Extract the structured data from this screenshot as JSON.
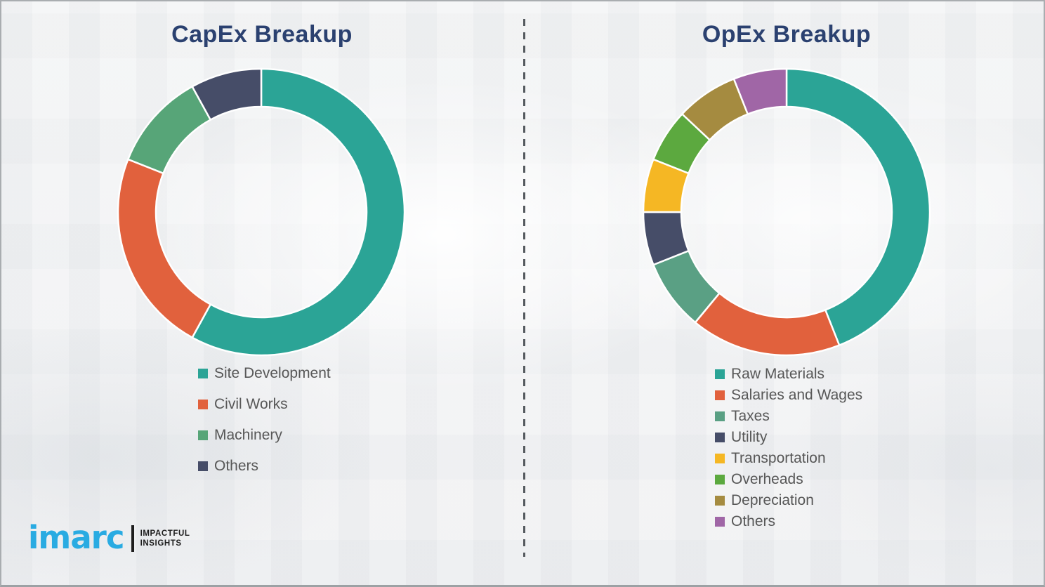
{
  "style": {
    "title_color": "#2B4170",
    "legend_text_color": "#575757",
    "segment_gap_color": "#ffffff"
  },
  "chart_data": [
    {
      "type": "donut",
      "title": "CapEx Breakup",
      "categories": [
        "Site Development",
        "Civil Works",
        "Machinery",
        "Others"
      ],
      "values": [
        58,
        23,
        11,
        8
      ],
      "colors": [
        "#2BA496",
        "#E1613D",
        "#57A578",
        "#464D68"
      ],
      "start_angle_deg": 0,
      "direction": "clockwise",
      "legend_position": "below",
      "data_labels": false
    },
    {
      "type": "donut",
      "title": "OpEx Breakup",
      "categories": [
        "Raw Materials",
        "Salaries and Wages",
        "Taxes",
        "Utility",
        "Transportation",
        "Overheads",
        "Depreciation",
        "Others"
      ],
      "values": [
        44,
        17,
        8,
        6,
        6,
        6,
        7,
        6
      ],
      "colors": [
        "#2BA496",
        "#E1613D",
        "#5AA084",
        "#464D68",
        "#F5B724",
        "#5CA93F",
        "#A58B40",
        "#A066A6"
      ],
      "start_angle_deg": 0,
      "direction": "clockwise",
      "legend_position": "below",
      "data_labels": false
    }
  ],
  "logo": {
    "brand": "imarc",
    "brand_color": "#29ABE2",
    "tagline_line1": "IMPACTFUL",
    "tagline_line2": "INSIGHTS",
    "tagline_color": "#1d1d1d"
  }
}
